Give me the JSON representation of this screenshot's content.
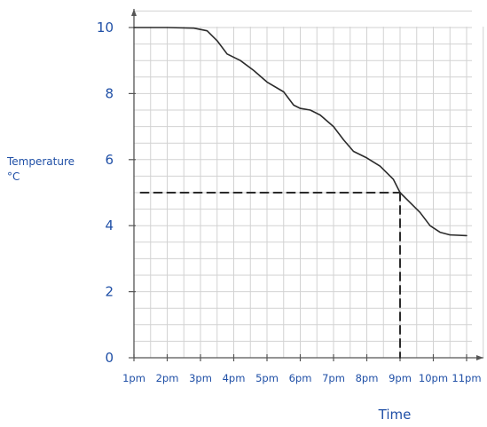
{
  "chart_data": {
    "type": "line",
    "xlabel": "Time",
    "ylabel": "Temperature",
    "ylabel_unit": "°C",
    "categories": [
      "1pm",
      "2pm",
      "3pm",
      "4pm",
      "5pm",
      "6pm",
      "7pm",
      "8pm",
      "9pm",
      "10pm",
      "11pm"
    ],
    "yticks": [
      "0",
      "2",
      "4",
      "6",
      "8",
      "10"
    ],
    "ylim": [
      0,
      10.5
    ],
    "grid": true,
    "series": [
      {
        "style": "solid",
        "points": [
          [
            0,
            10
          ],
          [
            1,
            10
          ],
          [
            1.8,
            9.98
          ],
          [
            2.2,
            9.9
          ],
          [
            2.5,
            9.6
          ],
          [
            2.8,
            9.2
          ],
          [
            3.2,
            9.0
          ],
          [
            3.6,
            8.7
          ],
          [
            4.0,
            8.35
          ],
          [
            4.5,
            8.05
          ],
          [
            4.8,
            7.65
          ],
          [
            5.0,
            7.55
          ],
          [
            5.3,
            7.5
          ],
          [
            5.6,
            7.35
          ],
          [
            6.0,
            7.0
          ],
          [
            6.3,
            6.6
          ],
          [
            6.6,
            6.25
          ],
          [
            7.0,
            6.05
          ],
          [
            7.4,
            5.8
          ],
          [
            7.8,
            5.4
          ],
          [
            8.0,
            5.0
          ],
          [
            8.3,
            4.7
          ],
          [
            8.6,
            4.4
          ],
          [
            8.9,
            4.0
          ],
          [
            9.2,
            3.8
          ],
          [
            9.5,
            3.72
          ],
          [
            10.0,
            3.7
          ]
        ]
      },
      {
        "style": "dashed",
        "points": [
          [
            0.2,
            5.0
          ],
          [
            8.0,
            5.0
          ]
        ]
      },
      {
        "style": "dashed",
        "points": [
          [
            8.0,
            5.0
          ],
          [
            8.0,
            0
          ]
        ]
      }
    ],
    "colors": {
      "line": "#2b2b2b",
      "text": "#1f4fa6",
      "grid": "#d2d2d2",
      "axis": "#555555"
    }
  }
}
